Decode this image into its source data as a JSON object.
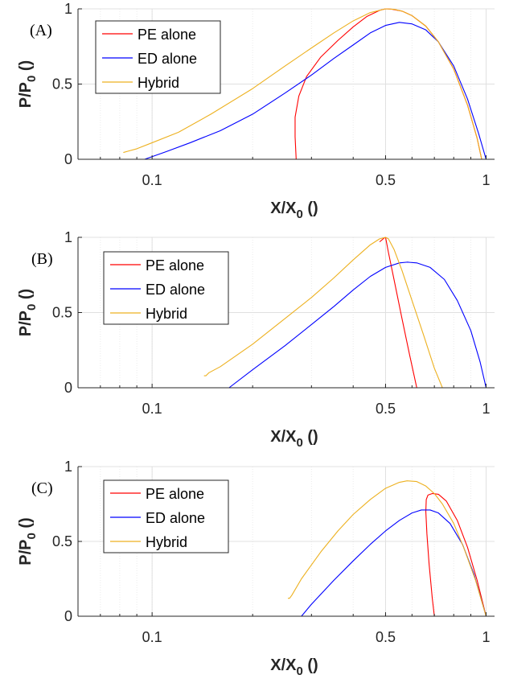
{
  "chart_data": [
    {
      "type": "line",
      "panel_label": "(A)",
      "xlabel": "X/X",
      "xlabel_sub": "0",
      "xlabel_unit": " ()",
      "ylabel": "P/P",
      "ylabel_sub": "0",
      "ylabel_unit": " ()",
      "x_scale": "log",
      "xlim": [
        0.06,
        1.06
      ],
      "ylim": [
        0,
        1
      ],
      "x_ticks": [
        {
          "value": 0.1,
          "label": "0.1"
        },
        {
          "value": 0.5,
          "label": "0.5"
        },
        {
          "value": 1,
          "label": "1"
        }
      ],
      "y_ticks": [
        {
          "value": 0,
          "label": "0"
        },
        {
          "value": 0.5,
          "label": "0.5"
        },
        {
          "value": 1,
          "label": "1"
        }
      ],
      "grid": true,
      "legend_position": "top-left",
      "series": [
        {
          "name": "PE alone",
          "color": "#ff0000",
          "x": [
            0.27,
            0.268,
            0.268,
            0.275,
            0.29,
            0.32,
            0.36,
            0.4,
            0.44,
            0.48,
            0.5,
            0.52,
            0.56,
            0.6,
            0.66,
            0.72,
            0.8,
            0.88,
            0.94,
            0.97
          ],
          "y": [
            0,
            0.15,
            0.28,
            0.42,
            0.55,
            0.68,
            0.79,
            0.88,
            0.95,
            0.99,
            1.0,
            0.998,
            0.985,
            0.955,
            0.885,
            0.78,
            0.6,
            0.36,
            0.14,
            0.0
          ]
        },
        {
          "name": "ED alone",
          "color": "#0000ff",
          "x": [
            0.095,
            0.11,
            0.13,
            0.16,
            0.2,
            0.25,
            0.3,
            0.35,
            0.4,
            0.45,
            0.5,
            0.55,
            0.6,
            0.66,
            0.72,
            0.8,
            0.88,
            0.95,
            1.0
          ],
          "y": [
            0.0,
            0.05,
            0.11,
            0.19,
            0.3,
            0.44,
            0.56,
            0.67,
            0.76,
            0.84,
            0.89,
            0.91,
            0.9,
            0.86,
            0.78,
            0.62,
            0.4,
            0.17,
            0.0
          ]
        },
        {
          "name": "Hybrid",
          "color": "#edb120",
          "x": [
            0.082,
            0.085,
            0.09,
            0.1,
            0.12,
            0.15,
            0.2,
            0.25,
            0.3,
            0.35,
            0.4,
            0.45,
            0.5,
            0.53,
            0.56,
            0.6,
            0.66,
            0.72,
            0.8,
            0.88,
            0.94,
            0.97
          ],
          "y": [
            0.045,
            0.055,
            0.07,
            0.11,
            0.18,
            0.3,
            0.47,
            0.62,
            0.74,
            0.84,
            0.92,
            0.975,
            1.0,
            0.997,
            0.985,
            0.955,
            0.885,
            0.78,
            0.6,
            0.36,
            0.14,
            0.0
          ]
        }
      ]
    },
    {
      "type": "line",
      "panel_label": "(B)",
      "xlabel": "X/X",
      "xlabel_sub": "0",
      "xlabel_unit": " ()",
      "ylabel": "P/P",
      "ylabel_sub": "0",
      "ylabel_unit": " ()",
      "x_scale": "log",
      "xlim": [
        0.06,
        1.06
      ],
      "ylim": [
        0,
        1
      ],
      "x_ticks": [
        {
          "value": 0.1,
          "label": "0.1"
        },
        {
          "value": 0.5,
          "label": "0.5"
        },
        {
          "value": 1,
          "label": "1"
        }
      ],
      "y_ticks": [
        {
          "value": 0,
          "label": "0"
        },
        {
          "value": 0.5,
          "label": "0.5"
        },
        {
          "value": 1,
          "label": "1"
        }
      ],
      "grid": true,
      "legend_position": "top-left",
      "series": [
        {
          "name": "PE alone",
          "color": "#ff0000",
          "x": [
            0.48,
            0.495,
            0.5,
            0.51,
            0.53,
            0.56,
            0.59,
            0.62
          ],
          "y": [
            0.97,
            0.995,
            1.0,
            0.9,
            0.72,
            0.46,
            0.22,
            0.0
          ]
        },
        {
          "name": "ED alone",
          "color": "#0000ff",
          "x": [
            0.17,
            0.2,
            0.25,
            0.3,
            0.35,
            0.4,
            0.45,
            0.5,
            0.55,
            0.58,
            0.62,
            0.68,
            0.75,
            0.82,
            0.9,
            0.96,
            1.0
          ],
          "y": [
            0.0,
            0.12,
            0.28,
            0.42,
            0.54,
            0.65,
            0.74,
            0.8,
            0.83,
            0.835,
            0.83,
            0.8,
            0.72,
            0.58,
            0.38,
            0.17,
            0.0
          ]
        },
        {
          "name": "Hybrid",
          "color": "#edb120",
          "x": [
            0.143,
            0.145,
            0.148,
            0.16,
            0.2,
            0.25,
            0.3,
            0.35,
            0.4,
            0.45,
            0.48,
            0.5,
            0.51,
            0.53,
            0.56,
            0.6,
            0.65,
            0.7,
            0.74
          ],
          "y": [
            0.08,
            0.08,
            0.1,
            0.14,
            0.29,
            0.46,
            0.6,
            0.73,
            0.85,
            0.95,
            0.99,
            1.0,
            0.99,
            0.92,
            0.78,
            0.58,
            0.35,
            0.13,
            0.0
          ]
        }
      ]
    },
    {
      "type": "line",
      "panel_label": "(C)",
      "xlabel": "X/X",
      "xlabel_sub": "0",
      "xlabel_unit": " ()",
      "ylabel": "P/P",
      "ylabel_sub": "0",
      "ylabel_unit": " ()",
      "x_scale": "log",
      "xlim": [
        0.06,
        1.06
      ],
      "ylim": [
        0,
        1
      ],
      "x_ticks": [
        {
          "value": 0.1,
          "label": "0.1"
        },
        {
          "value": 0.5,
          "label": "0.5"
        },
        {
          "value": 1,
          "label": "1"
        }
      ],
      "y_ticks": [
        {
          "value": 0,
          "label": "0"
        },
        {
          "value": 0.5,
          "label": "0.5"
        },
        {
          "value": 1,
          "label": "1"
        }
      ],
      "grid": true,
      "legend_position": "top-left",
      "series": [
        {
          "name": "PE alone",
          "color": "#ff0000",
          "x": [
            0.7,
            0.69,
            0.675,
            0.665,
            0.66,
            0.662,
            0.67,
            0.69,
            0.72,
            0.76,
            0.82,
            0.88,
            0.94,
            1.0
          ],
          "y": [
            0.0,
            0.12,
            0.35,
            0.55,
            0.7,
            0.78,
            0.81,
            0.82,
            0.815,
            0.77,
            0.64,
            0.46,
            0.24,
            0.0
          ]
        },
        {
          "name": "ED alone",
          "color": "#0000ff",
          "x": [
            0.28,
            0.3,
            0.35,
            0.4,
            0.45,
            0.5,
            0.55,
            0.6,
            0.64,
            0.68,
            0.72,
            0.78,
            0.85,
            0.92,
            1.0
          ],
          "y": [
            0.0,
            0.08,
            0.24,
            0.37,
            0.48,
            0.57,
            0.64,
            0.69,
            0.71,
            0.71,
            0.69,
            0.62,
            0.48,
            0.28,
            0.0
          ]
        },
        {
          "name": "Hybrid",
          "color": "#edb120",
          "x": [
            0.255,
            0.258,
            0.262,
            0.28,
            0.32,
            0.36,
            0.4,
            0.45,
            0.5,
            0.55,
            0.58,
            0.62,
            0.66,
            0.7,
            0.74,
            0.8,
            0.86,
            0.93,
            1.0
          ],
          "y": [
            0.12,
            0.12,
            0.14,
            0.25,
            0.43,
            0.57,
            0.68,
            0.78,
            0.855,
            0.895,
            0.905,
            0.9,
            0.87,
            0.82,
            0.75,
            0.62,
            0.45,
            0.24,
            0.0
          ]
        }
      ]
    }
  ]
}
